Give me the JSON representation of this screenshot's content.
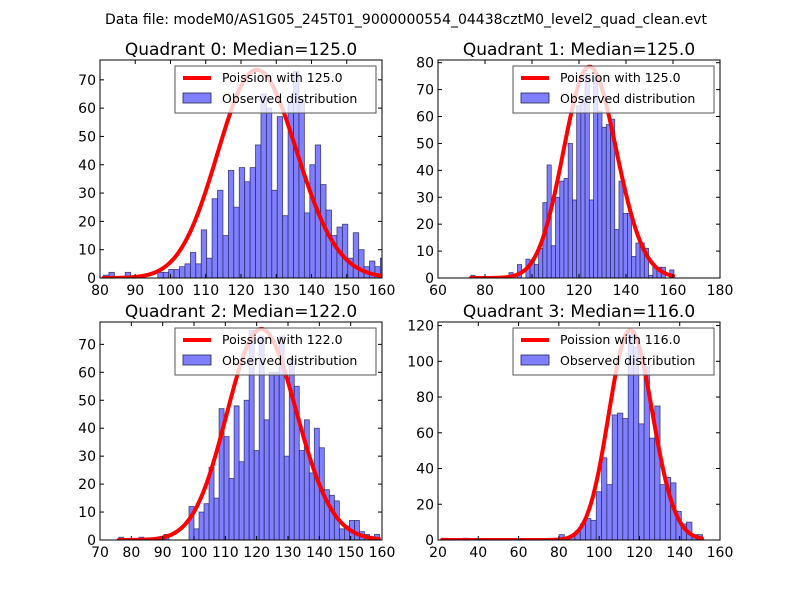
{
  "figure": {
    "suptitle": "Data file: modeM0/AS1G05_245T01_9000000554_04438cztM0_level2_quad_clean.evt"
  },
  "colors": {
    "bar_fill": "#7f7fff",
    "bar_edge": "#222255",
    "poisson_line": "#ff0000"
  },
  "chart_data": [
    {
      "type": "bar",
      "title": "Quadrant 0: Median=125.0",
      "xlim": [
        80,
        160
      ],
      "ylim": [
        0,
        77
      ],
      "xticks": [
        80,
        90,
        100,
        110,
        120,
        130,
        140,
        150,
        160
      ],
      "yticks": [
        0,
        10,
        20,
        30,
        40,
        50,
        60,
        70
      ],
      "legend": {
        "position": "upper-right",
        "entries": [
          "Poission with 125.0",
          "Observed distribution"
        ]
      },
      "bins": {
        "start": 81,
        "width": 1.54
      },
      "values": [
        1,
        2,
        0,
        0,
        2,
        0,
        0,
        0,
        0,
        0,
        2,
        2,
        3,
        3,
        4,
        5,
        9,
        5,
        17,
        7,
        28,
        31,
        15,
        38,
        25,
        39,
        34,
        39,
        47,
        65,
        60,
        31,
        57,
        22,
        62,
        73,
        63,
        23,
        40,
        47,
        33,
        24,
        15,
        18,
        19,
        7,
        16,
        10,
        4,
        6,
        4,
        7,
        1
      ],
      "poisson_mean": 125.0,
      "poisson_peak": 73.5
    },
    {
      "type": "bar",
      "title": "Quadrant 1: Median=125.0",
      "xlim": [
        60,
        180
      ],
      "ylim": [
        0,
        81
      ],
      "xticks": [
        60,
        80,
        100,
        120,
        140,
        160,
        180
      ],
      "yticks": [
        0,
        10,
        20,
        30,
        40,
        50,
        60,
        70,
        80
      ],
      "legend": {
        "position": "upper-right",
        "entries": [
          "Poission with 125.0",
          "Observed distribution"
        ]
      },
      "bins": {
        "start": 74,
        "width": 1.8
      },
      "values": [
        1,
        0,
        0,
        0,
        0,
        0,
        0,
        0,
        0,
        2,
        0,
        5,
        0,
        7,
        6,
        5,
        11,
        28,
        42,
        12,
        30,
        36,
        37,
        50,
        29,
        64,
        67,
        76,
        29,
        75,
        62,
        56,
        57,
        59,
        18,
        36,
        24,
        24,
        8,
        13,
        13,
        11,
        1,
        4,
        4,
        4,
        0,
        3
      ],
      "poisson_mean": 125.0,
      "poisson_peak": 78.5
    },
    {
      "type": "bar",
      "title": "Quadrant 2: Median=122.0",
      "xlim": [
        70,
        160
      ],
      "ylim": [
        0,
        78
      ],
      "xticks": [
        70,
        80,
        90,
        100,
        110,
        120,
        130,
        140,
        150,
        160
      ],
      "yticks": [
        0,
        10,
        20,
        30,
        40,
        50,
        60,
        70
      ],
      "legend": {
        "position": "upper-right",
        "entries": [
          "Poission with 122.0",
          "Observed distribution"
        ]
      },
      "bins": {
        "start": 76,
        "width": 1.6
      },
      "values": [
        1,
        0,
        0,
        0,
        1,
        0,
        0,
        0,
        0,
        2,
        0,
        0,
        0,
        0,
        12,
        4,
        10,
        13,
        26,
        15,
        47,
        37,
        22,
        48,
        28,
        50,
        75,
        32,
        73,
        43,
        60,
        60,
        73,
        30,
        65,
        55,
        32,
        43,
        24,
        40,
        33,
        18,
        16,
        14,
        4,
        5,
        7,
        7,
        3,
        2,
        1,
        2
      ],
      "poisson_mean": 122.0,
      "poisson_peak": 75.5
    },
    {
      "type": "bar",
      "title": "Quadrant 3: Median=116.0",
      "xlim": [
        20,
        160
      ],
      "ylim": [
        0,
        122
      ],
      "xticks": [
        20,
        40,
        60,
        80,
        100,
        120,
        140,
        160
      ],
      "yticks": [
        0,
        20,
        40,
        60,
        80,
        100,
        120
      ],
      "legend": {
        "position": "upper-right",
        "entries": [
          "Poission with 116.0",
          "Observed distribution"
        ]
      },
      "bins": {
        "start": 22,
        "width": 2.64
      },
      "values": [
        1,
        0,
        0,
        0,
        1,
        0,
        0,
        0,
        0,
        0,
        0,
        0,
        0,
        0,
        0,
        0,
        0,
        0,
        0,
        0,
        0,
        0,
        3,
        1,
        2,
        5,
        9,
        12,
        11,
        27,
        46,
        31,
        70,
        71,
        68,
        116,
        108,
        65,
        97,
        57,
        75,
        31,
        35,
        32,
        16,
        9,
        10,
        3,
        3
      ],
      "poisson_mean": 116.0,
      "poisson_peak": 117.5
    }
  ]
}
